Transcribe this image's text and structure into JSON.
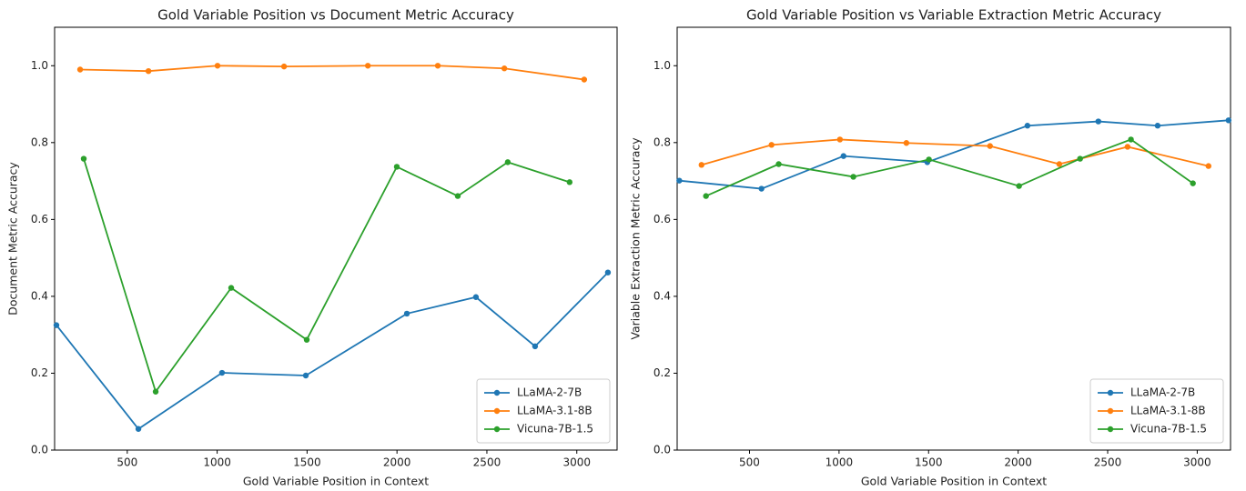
{
  "chart_data": [
    {
      "type": "line",
      "title": "Gold Variable Position vs Document Metric Accuracy",
      "x_label": "Gold Variable Position in Context",
      "y_label": "Document Metric Accuracy",
      "xlim": [
        96,
        3224
      ],
      "ylim": [
        0,
        1.1
      ],
      "xticks": [
        500,
        1000,
        1500,
        2000,
        2500,
        3000
      ],
      "yticks": [
        {
          "value": 0,
          "label": "0.0"
        },
        {
          "value": 0.2,
          "label": "0.2"
        },
        {
          "value": 0.4,
          "label": "0.4"
        },
        {
          "value": 0.6,
          "label": "0.6"
        },
        {
          "value": 0.8,
          "label": "0.8"
        },
        {
          "value": 1,
          "label": "1.0"
        }
      ],
      "legend": "lower right",
      "series": [
        {
          "name": "LLaMA-2-7B",
          "color": "#1f77b4",
          "x": [
            106,
            562,
            1027,
            1493,
            2055,
            2439,
            2768,
            3173
          ],
          "values": [
            0.325,
            0.055,
            0.201,
            0.194,
            0.355,
            0.398,
            0.27,
            0.462
          ]
        },
        {
          "name": "LLaMA-3.1-8B",
          "color": "#ff7f0e",
          "x": [
            238,
            618,
            1002,
            1372,
            1838,
            2227,
            2597,
            3041
          ],
          "values": [
            0.99,
            0.986,
            1.0,
            0.998,
            1.0,
            1.0,
            0.993,
            0.964
          ]
        },
        {
          "name": "Vicuna-7B-1.5",
          "color": "#2ca02c",
          "x": [
            258,
            658,
            1078,
            1498,
            1999,
            2338,
            2616,
            2960
          ],
          "values": [
            0.758,
            0.152,
            0.422,
            0.287,
            0.737,
            0.661,
            0.749,
            0.697
          ]
        }
      ]
    },
    {
      "type": "line",
      "title": "Gold Variable Position vs Variable Extraction Metric Accuracy",
      "x_label": "Gold Variable Position in Context",
      "y_label": "Variable Extraction Metric Accuracy",
      "xlim": [
        96,
        3186
      ],
      "ylim": [
        0,
        1.1
      ],
      "xticks": [
        500,
        1000,
        1500,
        2000,
        2500,
        3000
      ],
      "yticks": [
        {
          "value": 0,
          "label": "0.0"
        },
        {
          "value": 0.2,
          "label": "0.2"
        },
        {
          "value": 0.4,
          "label": "0.4"
        },
        {
          "value": 0.6,
          "label": "0.6"
        },
        {
          "value": 0.8,
          "label": "0.8"
        },
        {
          "value": 1,
          "label": "1.0"
        }
      ],
      "legend": "lower right",
      "series": [
        {
          "name": "LLaMA-2-7B",
          "color": "#1f77b4",
          "x": [
            108,
            567,
            1025,
            1493,
            2052,
            2448,
            2779,
            3175
          ],
          "values": [
            0.701,
            0.68,
            0.765,
            0.749,
            0.844,
            0.855,
            0.844,
            0.858
          ]
        },
        {
          "name": "LLaMA-3.1-8B",
          "color": "#ff7f0e",
          "x": [
            232,
            623,
            1005,
            1376,
            1843,
            2230,
            2611,
            3063
          ],
          "values": [
            0.742,
            0.794,
            0.808,
            0.799,
            0.791,
            0.744,
            0.789,
            0.739
          ]
        },
        {
          "name": "Vicuna-7B-1.5",
          "color": "#2ca02c",
          "x": [
            257,
            663,
            1080,
            1502,
            2005,
            2346,
            2630,
            2976
          ],
          "values": [
            0.661,
            0.744,
            0.711,
            0.756,
            0.687,
            0.758,
            0.808,
            0.694
          ]
        }
      ]
    }
  ]
}
